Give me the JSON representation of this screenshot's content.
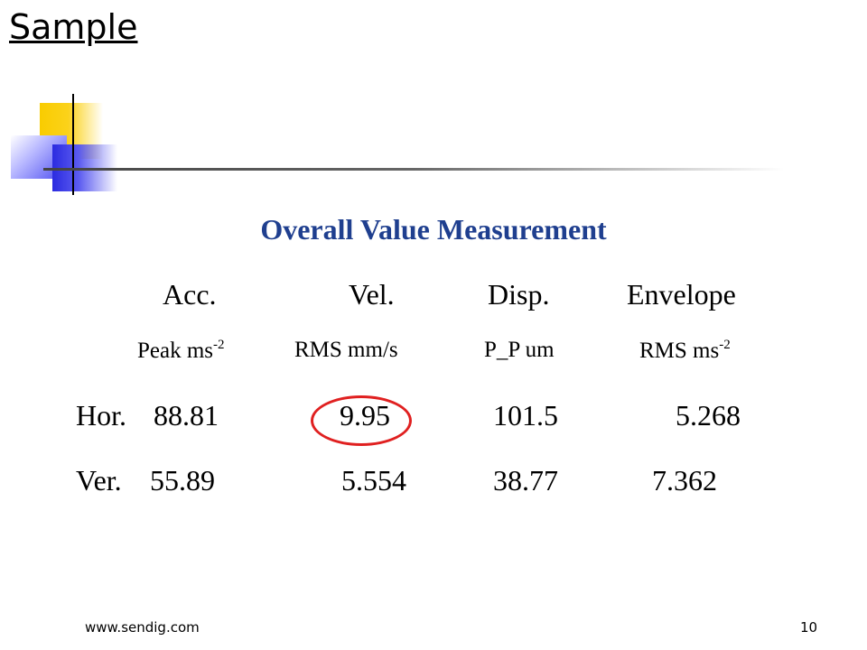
{
  "slide": {
    "title": "Sample",
    "heading": "Overall Value Measurement",
    "columns": [
      "Acc.",
      "Vel.",
      "Disp.",
      "Envelope"
    ],
    "units": [
      {
        "text": "Peak ms",
        "sup": "-2"
      },
      {
        "text": "RMS mm/s",
        "sup": ""
      },
      {
        "text": "P_P um",
        "sup": ""
      },
      {
        "text": "RMS ms",
        "sup": "-2"
      }
    ],
    "rows": [
      {
        "label": "Hor.",
        "values": [
          "88.81",
          "9.95",
          "101.5",
          "5.268"
        ]
      },
      {
        "label": "Ver.",
        "values": [
          "55.89",
          "5.554",
          "38.77",
          "7.362"
        ]
      }
    ],
    "highlight_color": "#e02020",
    "heading_color": "#1f3f8f"
  },
  "footer": {
    "website": "www.sendig.com",
    "page_number": "10"
  }
}
